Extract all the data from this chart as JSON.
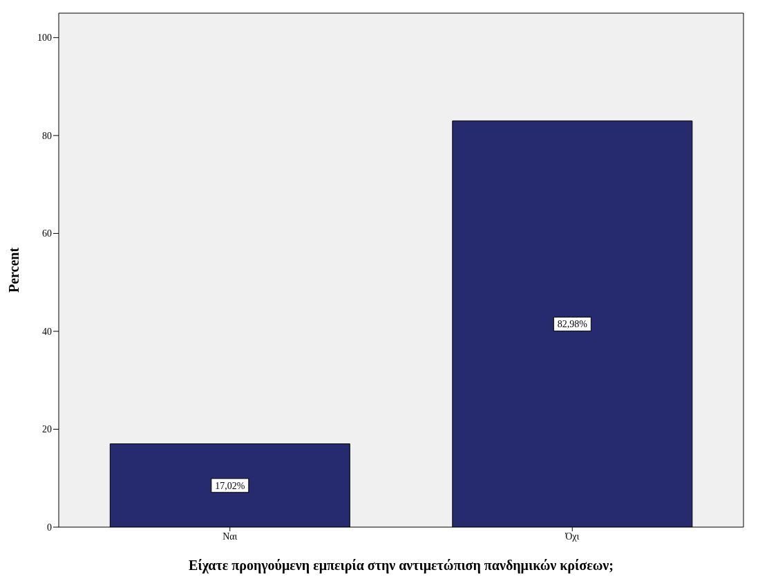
{
  "chart_data": {
    "type": "bar",
    "xlabel": "Είχατε προηγούμενη εμπειρία στην αντιμετώπιση πανδημικών κρίσεων;",
    "ylabel": "Percent",
    "categories": [
      "Ναι",
      "Όχι"
    ],
    "values": [
      17.02,
      82.98
    ],
    "value_labels": [
      "17,02%",
      "82,98%"
    ],
    "color": "#262a6e",
    "ylim": [
      0,
      105
    ],
    "yticks": [
      0,
      20,
      40,
      60,
      80,
      100
    ],
    "grid": false
  }
}
